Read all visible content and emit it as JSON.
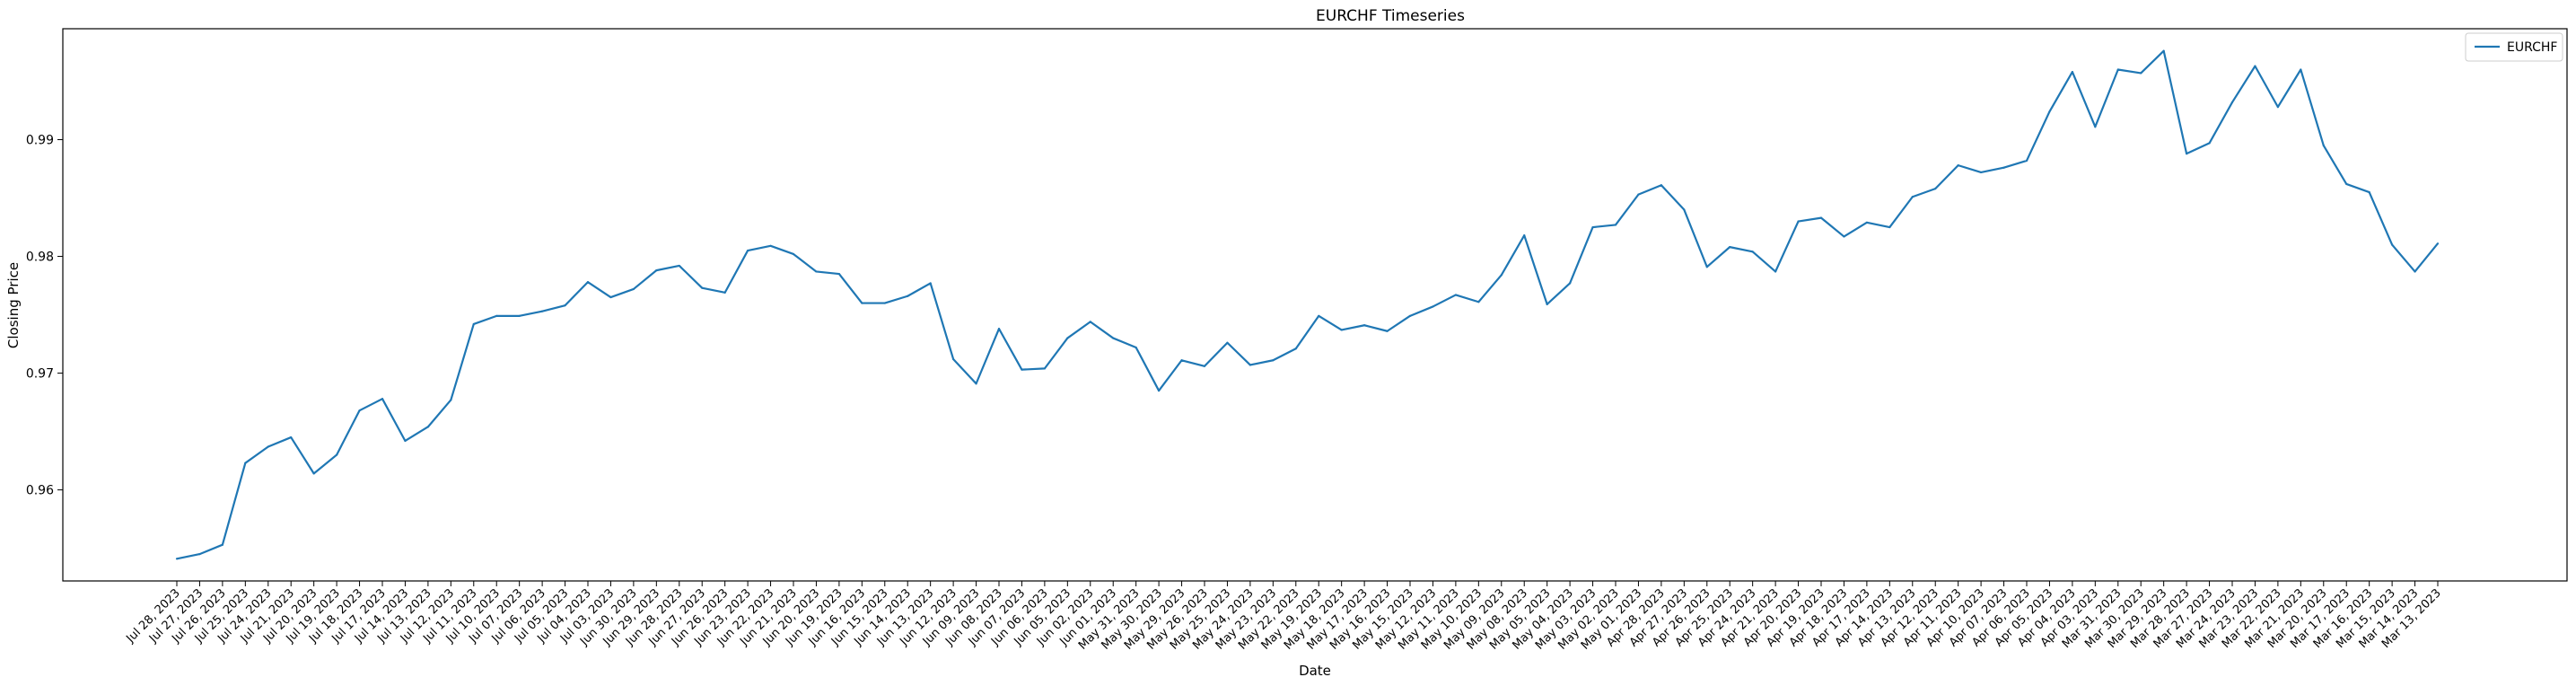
{
  "chart_data": {
    "type": "line",
    "title": "EURCHF Timeseries",
    "xlabel": "Date",
    "ylabel": "Closing Price",
    "ylim": [
      0.9522,
      0.9995
    ],
    "yticks": [
      0.96,
      0.97,
      0.98,
      0.99
    ],
    "ytick_labels": [
      "0.96",
      "0.97",
      "0.98",
      "0.99"
    ],
    "grid": false,
    "legend": {
      "location": "top-right",
      "entries": [
        "EURCHF"
      ]
    },
    "series_color": "#1f77b4",
    "categories": [
      "Jul 28, 2023",
      "Jul 27, 2023",
      "Jul 26, 2023",
      "Jul 25, 2023",
      "Jul 24, 2023",
      "Jul 21, 2023",
      "Jul 20, 2023",
      "Jul 19, 2023",
      "Jul 18, 2023",
      "Jul 17, 2023",
      "Jul 14, 2023",
      "Jul 13, 2023",
      "Jul 12, 2023",
      "Jul 11, 2023",
      "Jul 10, 2023",
      "Jul 07, 2023",
      "Jul 06, 2023",
      "Jul 05, 2023",
      "Jul 04, 2023",
      "Jul 03, 2023",
      "Jun 30, 2023",
      "Jun 29, 2023",
      "Jun 28, 2023",
      "Jun 27, 2023",
      "Jun 26, 2023",
      "Jun 23, 2023",
      "Jun 22, 2023",
      "Jun 21, 2023",
      "Jun 20, 2023",
      "Jun 19, 2023",
      "Jun 16, 2023",
      "Jun 15, 2023",
      "Jun 14, 2023",
      "Jun 13, 2023",
      "Jun 12, 2023",
      "Jun 09, 2023",
      "Jun 08, 2023",
      "Jun 07, 2023",
      "Jun 06, 2023",
      "Jun 05, 2023",
      "Jun 02, 2023",
      "Jun 01, 2023",
      "May 31, 2023",
      "May 30, 2023",
      "May 29, 2023",
      "May 26, 2023",
      "May 25, 2023",
      "May 24, 2023",
      "May 23, 2023",
      "May 22, 2023",
      "May 19, 2023",
      "May 18, 2023",
      "May 17, 2023",
      "May 16, 2023",
      "May 15, 2023",
      "May 12, 2023",
      "May 11, 2023",
      "May 10, 2023",
      "May 09, 2023",
      "May 08, 2023",
      "May 05, 2023",
      "May 04, 2023",
      "May 03, 2023",
      "May 02, 2023",
      "May 01, 2023",
      "Apr 28, 2023",
      "Apr 27, 2023",
      "Apr 26, 2023",
      "Apr 25, 2023",
      "Apr 24, 2023",
      "Apr 21, 2023",
      "Apr 20, 2023",
      "Apr 19, 2023",
      "Apr 18, 2023",
      "Apr 17, 2023",
      "Apr 14, 2023",
      "Apr 13, 2023",
      "Apr 12, 2023",
      "Apr 11, 2023",
      "Apr 10, 2023",
      "Apr 07, 2023",
      "Apr 06, 2023",
      "Apr 05, 2023",
      "Apr 04, 2023",
      "Apr 03, 2023",
      "Mar 31, 2023",
      "Mar 30, 2023",
      "Mar 29, 2023",
      "Mar 28, 2023",
      "Mar 27, 2023",
      "Mar 24, 2023",
      "Mar 23, 2023",
      "Mar 22, 2023",
      "Mar 21, 2023",
      "Mar 20, 2023",
      "Mar 17, 2023",
      "Mar 16, 2023",
      "Mar 15, 2023",
      "Mar 14, 2023",
      "Mar 13, 2023"
    ],
    "series": [
      {
        "name": "EURCHF",
        "values": [
          0.9541,
          0.9545,
          0.9553,
          0.9623,
          0.9637,
          0.9645,
          0.9614,
          0.963,
          0.9668,
          0.9678,
          0.9642,
          0.9654,
          0.9677,
          0.9742,
          0.9749,
          0.9749,
          0.9753,
          0.9758,
          0.9778,
          0.9765,
          0.9772,
          0.9788,
          0.9792,
          0.9773,
          0.9769,
          0.9805,
          0.9809,
          0.9802,
          0.9787,
          0.9785,
          0.976,
          0.976,
          0.9766,
          0.9777,
          0.9712,
          0.9691,
          0.9738,
          0.9703,
          0.9704,
          0.973,
          0.9744,
          0.973,
          0.9722,
          0.9685,
          0.9711,
          0.9706,
          0.9726,
          0.9707,
          0.9711,
          0.9721,
          0.9749,
          0.9737,
          0.9741,
          0.9736,
          0.9749,
          0.9757,
          0.9767,
          0.9761,
          0.9784,
          0.9818,
          0.9759,
          0.9777,
          0.9825,
          0.9827,
          0.9853,
          0.9861,
          0.984,
          0.9791,
          0.9808,
          0.9804,
          0.9787,
          0.983,
          0.9833,
          0.9817,
          0.9829,
          0.9825,
          0.9851,
          0.9858,
          0.9878,
          0.9872,
          0.9876,
          0.9882,
          0.9924,
          0.9958,
          0.9911,
          0.996,
          0.9957,
          0.9976,
          0.9888,
          0.9897,
          0.9932,
          0.9963,
          0.9928,
          0.996,
          0.9895,
          0.9862,
          0.9855,
          0.981,
          0.9787,
          0.9811
        ]
      }
    ]
  }
}
